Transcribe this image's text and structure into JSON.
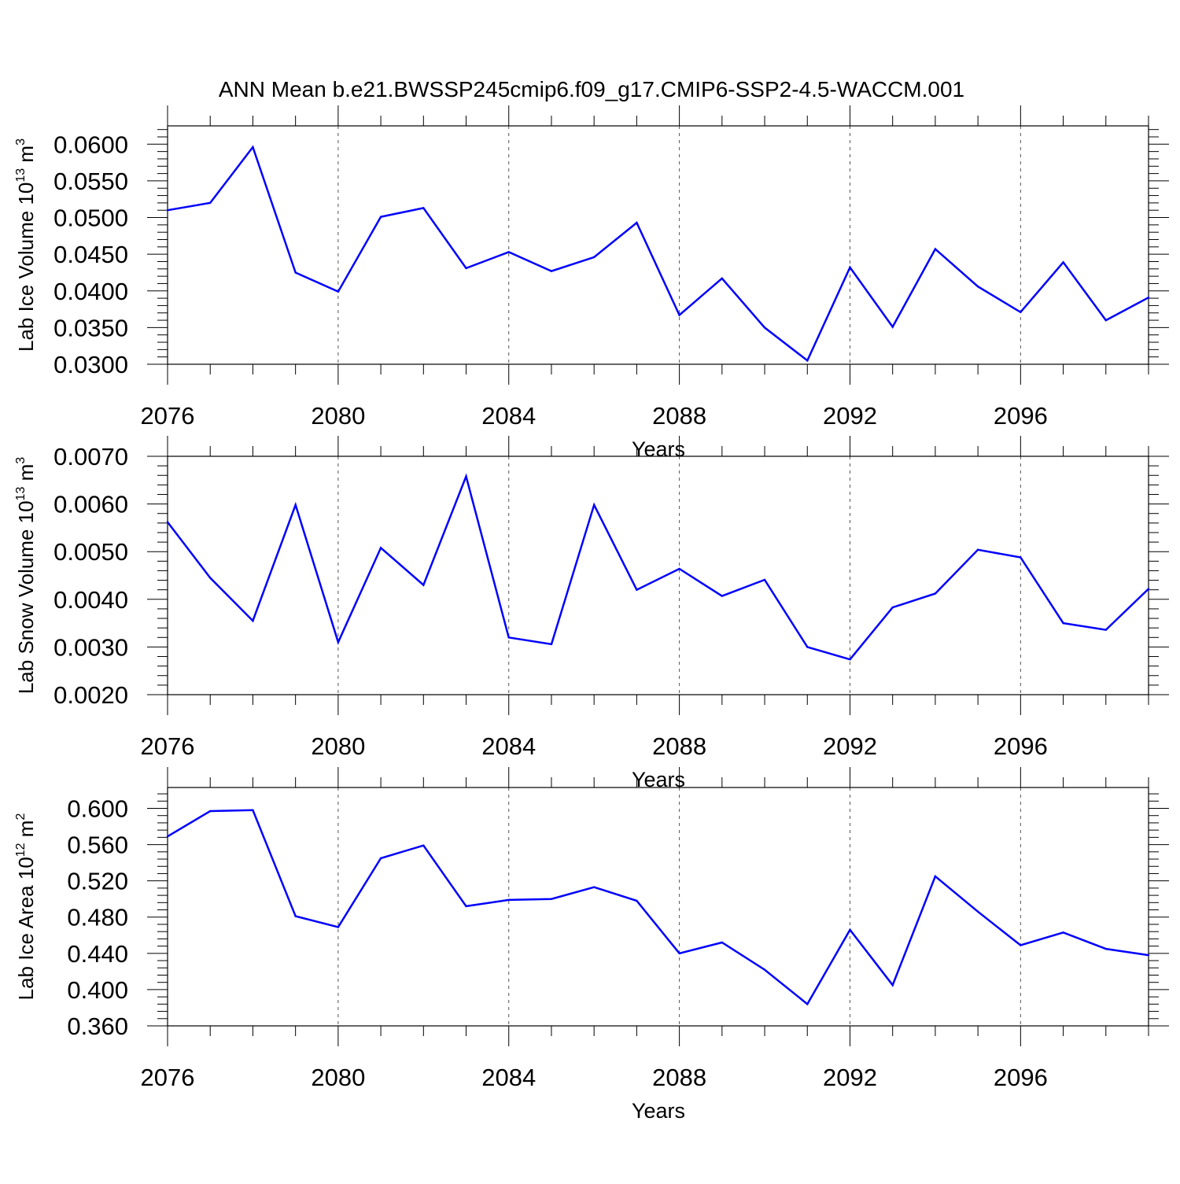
{
  "title": "ANN Mean b.e21.BWSSP245cmip6.f09_g17.CMIP6-SSP2-4.5-WACCM.001",
  "chart_data": [
    {
      "type": "line",
      "ylabel": "Lab Ice Volume 10",
      "ylabel_exp": "13",
      "ylabel_unit": " m",
      "ylabel_unit_exp": "3",
      "xlabel": "Years",
      "xlim": [
        2076,
        2099
      ],
      "ylim": [
        0.03,
        0.0625
      ],
      "major_step": 0.005,
      "minor_step": 0.001,
      "yticks": [
        "0.0300",
        "0.0350",
        "0.0400",
        "0.0450",
        "0.0500",
        "0.0550",
        "0.0600"
      ],
      "xticks": [
        "2076",
        "2080",
        "2084",
        "2088",
        "2092",
        "2096"
      ],
      "grid": "vertical dashed at major x ticks",
      "color": "#0000ff",
      "x": [
        2076,
        2077,
        2078,
        2079,
        2080,
        2081,
        2082,
        2083,
        2084,
        2085,
        2086,
        2087,
        2088,
        2089,
        2090,
        2091,
        2092,
        2093,
        2094,
        2095,
        2096,
        2097,
        2098,
        2099
      ],
      "values": [
        0.051,
        0.052,
        0.0596,
        0.0425,
        0.0399,
        0.0501,
        0.0513,
        0.0431,
        0.0453,
        0.0427,
        0.0446,
        0.0493,
        0.0367,
        0.0417,
        0.035,
        0.0305,
        0.0432,
        0.0351,
        0.0457,
        0.0406,
        0.0371,
        0.0439,
        0.036,
        0.0391
      ]
    },
    {
      "type": "line",
      "ylabel": "Lab Snow Volume 10",
      "ylabel_exp": "13",
      "ylabel_unit": " m",
      "ylabel_unit_exp": "3",
      "xlabel": "Years",
      "xlim": [
        2076,
        2099
      ],
      "ylim": [
        0.002,
        0.007
      ],
      "major_step": 0.001,
      "minor_step": 0.0002,
      "yticks": [
        "0.0020",
        "0.0030",
        "0.0040",
        "0.0050",
        "0.0060",
        "0.0070"
      ],
      "xticks": [
        "2076",
        "2080",
        "2084",
        "2088",
        "2092",
        "2096"
      ],
      "grid": "vertical dashed at major x ticks",
      "color": "#0000ff",
      "x": [
        2076,
        2077,
        2078,
        2079,
        2080,
        2081,
        2082,
        2083,
        2084,
        2085,
        2086,
        2087,
        2088,
        2089,
        2090,
        2091,
        2092,
        2093,
        2094,
        2095,
        2096,
        2097,
        2098,
        2099
      ],
      "values": [
        0.00562,
        0.00445,
        0.00355,
        0.00598,
        0.0031,
        0.00508,
        0.0043,
        0.00658,
        0.0032,
        0.00306,
        0.00598,
        0.0042,
        0.00464,
        0.00407,
        0.00441,
        0.003,
        0.00274,
        0.00383,
        0.00412,
        0.00504,
        0.00488,
        0.0035,
        0.00336,
        0.00422
      ]
    },
    {
      "type": "line",
      "ylabel": "Lab Ice Area 10",
      "ylabel_exp": "12",
      "ylabel_unit": " m",
      "ylabel_unit_exp": "2",
      "xlabel": "Years",
      "xlim": [
        2076,
        2099
      ],
      "ylim": [
        0.36,
        0.623
      ],
      "major_step": 0.04,
      "minor_step": 0.008,
      "yticks": [
        "0.360",
        "0.400",
        "0.440",
        "0.480",
        "0.520",
        "0.560",
        "0.600"
      ],
      "xticks": [
        "2076",
        "2080",
        "2084",
        "2088",
        "2092",
        "2096"
      ],
      "grid": "vertical dashed at major x ticks",
      "color": "#0000ff",
      "x": [
        2076,
        2077,
        2078,
        2079,
        2080,
        2081,
        2082,
        2083,
        2084,
        2085,
        2086,
        2087,
        2088,
        2089,
        2090,
        2091,
        2092,
        2093,
        2094,
        2095,
        2096,
        2097,
        2098,
        2099
      ],
      "values": [
        0.569,
        0.597,
        0.598,
        0.481,
        0.469,
        0.545,
        0.559,
        0.492,
        0.499,
        0.5,
        0.513,
        0.498,
        0.44,
        0.452,
        0.422,
        0.384,
        0.466,
        0.405,
        0.525,
        0.486,
        0.449,
        0.463,
        0.445,
        0.438
      ]
    }
  ]
}
